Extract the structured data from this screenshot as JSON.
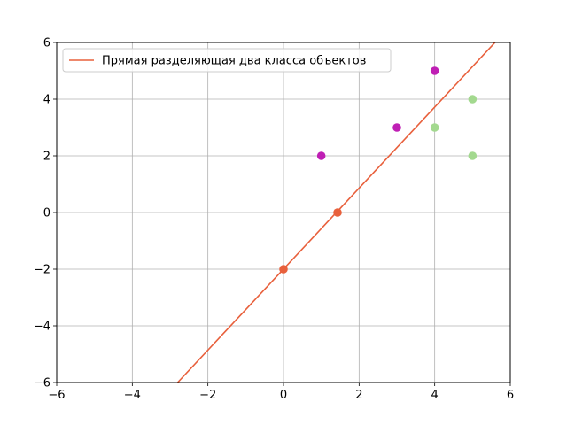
{
  "chart_data": {
    "type": "scatter",
    "xlim": [
      -6,
      6
    ],
    "ylim": [
      -6,
      6
    ],
    "xticks": [
      -6,
      -4,
      -2,
      0,
      2,
      4,
      6
    ],
    "yticks": [
      -6,
      -4,
      -2,
      0,
      2,
      4,
      6
    ],
    "xtick_labels": [
      "−6",
      "−4",
      "−2",
      "0",
      "2",
      "4",
      "6"
    ],
    "ytick_labels": [
      "−6",
      "−4",
      "−2",
      "0",
      "2",
      "4",
      "6"
    ],
    "grid": true,
    "legend": {
      "placement": "top-left",
      "entries": [
        "Прямая разделяющая два класса объектов"
      ]
    },
    "line": {
      "name": "Прямая разделяющая два класса объектов",
      "color": "#e8603c",
      "x": [
        -2.8,
        5.7
      ],
      "y": [
        -6,
        6.15
      ]
    },
    "series": [
      {
        "color": "#bf1fb4",
        "x": [
          1,
          3,
          4
        ],
        "y": [
          2,
          3,
          5
        ]
      },
      {
        "color": "#a3d98f",
        "x": [
          4,
          5,
          5
        ],
        "y": [
          3,
          4,
          2
        ]
      },
      {
        "color": "#e8603c",
        "x": [
          0,
          1.43
        ],
        "y": [
          -2,
          0
        ]
      }
    ]
  }
}
